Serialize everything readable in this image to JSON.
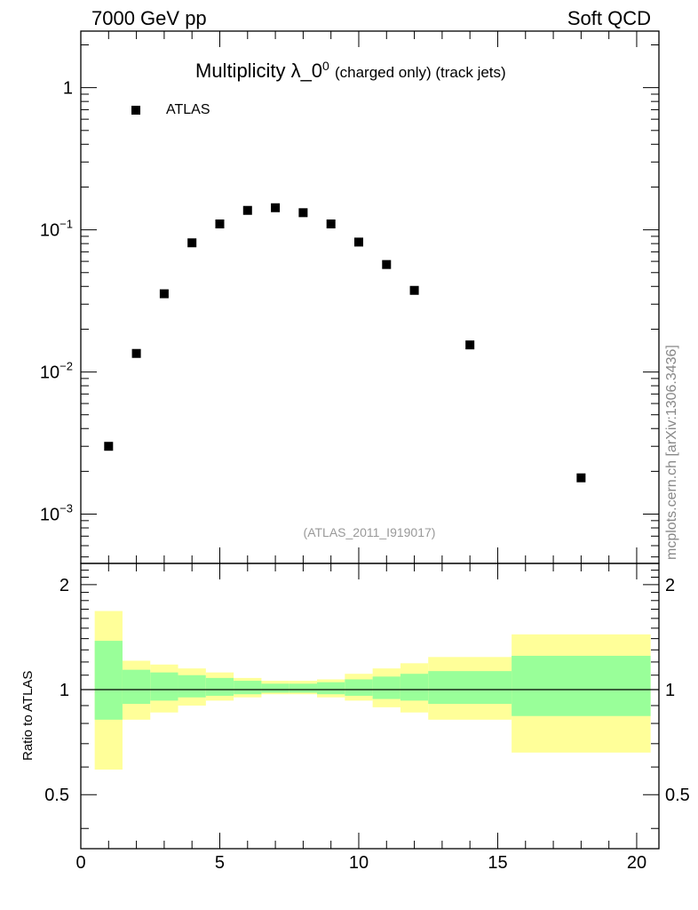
{
  "header": {
    "left": "7000 GeV pp",
    "right": "Soft QCD"
  },
  "side_note": "mcplots.cern.ch [arXiv:1306.3436]",
  "analysis_id": "(ATLAS_2011_I919017)",
  "ratio_ylabel": "Ratio to ATLAS",
  "title": {
    "main": "Multiplicity λ_0",
    "sup": "0",
    "rest": "(charged only) (track jets)"
  },
  "colors": {
    "inner_band": "#99ff99",
    "outer_band": "#ffff99",
    "marker": "#000000",
    "reference_line": "#000000"
  },
  "chart_data": [
    {
      "type": "scatter",
      "title": "Multiplicity λ_0^0 (charged only) (track jets)",
      "yscale": "log",
      "xlim": [
        0,
        20.8
      ],
      "ylim": [
        0.00045,
        2.5
      ],
      "y_ticks": [
        {
          "value": 0.001,
          "base": "10",
          "exp": "−3"
        },
        {
          "value": 0.01,
          "base": "10",
          "exp": "−2"
        },
        {
          "value": 0.1,
          "base": "10",
          "exp": "−1"
        },
        {
          "value": 1,
          "base": "1",
          "exp": ""
        }
      ],
      "legend": {
        "position": "top-left",
        "entries": [
          "ATLAS"
        ]
      },
      "series": [
        {
          "name": "ATLAS",
          "marker": "square",
          "x": [
            1,
            2,
            3,
            4,
            5,
            6,
            7,
            8,
            9,
            10,
            11,
            12,
            14,
            18
          ],
          "y": [
            0.003,
            0.0135,
            0.0355,
            0.081,
            0.11,
            0.137,
            0.143,
            0.132,
            0.11,
            0.082,
            0.057,
            0.0375,
            0.0155,
            0.0018
          ]
        }
      ]
    },
    {
      "type": "area",
      "ylabel": "Ratio to ATLAS",
      "xlim": [
        0,
        20.8
      ],
      "ylim": [
        0.35,
        2.3
      ],
      "x_ticks": [
        0,
        5,
        10,
        15,
        20
      ],
      "y_ticks": [
        "0.5",
        "1",
        "2"
      ],
      "reference_line": 1,
      "bands": {
        "edges": [
          0.5,
          1.5,
          2.5,
          3.5,
          4.5,
          5.5,
          6.5,
          7.5,
          8.5,
          9.5,
          10.5,
          11.5,
          12.5,
          15.5,
          20.5
        ],
        "inner_low": [
          0.82,
          0.91,
          0.93,
          0.95,
          0.96,
          0.97,
          0.98,
          0.98,
          0.97,
          0.96,
          0.94,
          0.93,
          0.91,
          0.84
        ],
        "inner_high": [
          1.38,
          1.14,
          1.12,
          1.1,
          1.08,
          1.06,
          1.04,
          1.04,
          1.05,
          1.07,
          1.09,
          1.11,
          1.13,
          1.25
        ],
        "outer_low": [
          0.59,
          0.82,
          0.86,
          0.9,
          0.93,
          0.95,
          0.97,
          0.97,
          0.95,
          0.93,
          0.89,
          0.86,
          0.82,
          0.66
        ],
        "outer_high": [
          1.68,
          1.21,
          1.18,
          1.15,
          1.12,
          1.08,
          1.06,
          1.06,
          1.07,
          1.11,
          1.15,
          1.19,
          1.24,
          1.44
        ]
      }
    }
  ]
}
